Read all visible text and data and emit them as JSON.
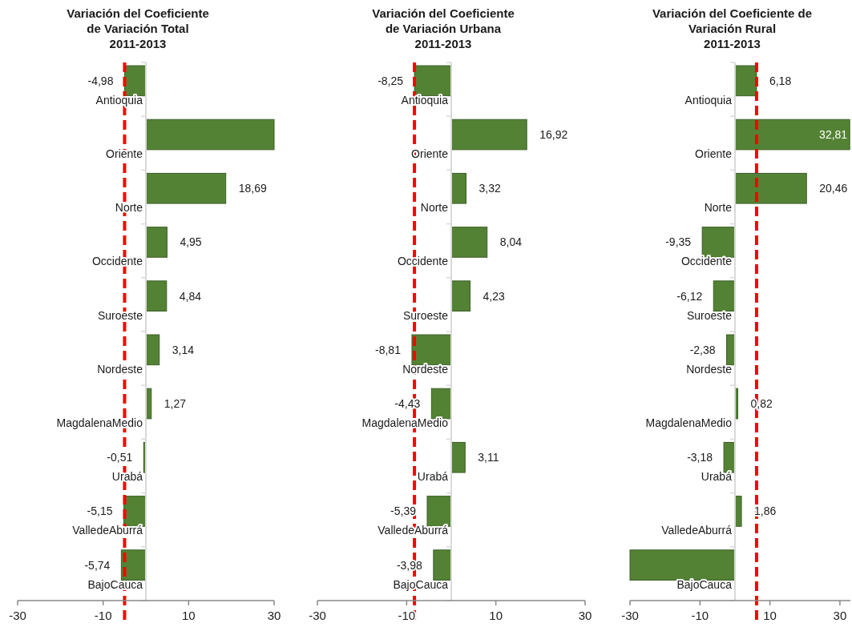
{
  "chart_data": [
    {
      "type": "bar",
      "orientation": "horizontal",
      "title": "Variación del Coeficiente\nde Variación Total\n2011-2013",
      "categories": [
        "Antioquia",
        "Oriente",
        "Norte",
        "Occidente",
        "Suroeste",
        "Nordeste",
        "MagdalenaMedio",
        "Urabá",
        "ValledeAburrá",
        "BajoCauca"
      ],
      "values": [
        -4.98,
        30,
        18.69,
        4.95,
        4.84,
        3.14,
        1.27,
        -0.51,
        -5.15,
        -5.74
      ],
      "value_labels": [
        "-4,98",
        null,
        "18,69",
        "4,95",
        "4,84",
        "3,14",
        "1,27",
        "-0,51",
        "-5,15",
        "-5,74"
      ],
      "color": "#548235",
      "xlim": [
        -30,
        30
      ],
      "xticks": [
        -30,
        -10,
        10,
        30
      ],
      "ref_lines": [
        {
          "axis": "x",
          "value": -4.98,
          "color": "#ff0000",
          "line_style": "dashed"
        }
      ],
      "grid": false
    },
    {
      "type": "bar",
      "orientation": "horizontal",
      "title": "Variación del Coeficiente\nde Variación Urbana\n2011-2013",
      "categories": [
        "Antioquia",
        "Oriente",
        "Norte",
        "Occidente",
        "Suroeste",
        "Nordeste",
        "MagdalenaMedio",
        "Urabá",
        "ValledeAburrá",
        "BajoCauca"
      ],
      "values": [
        -8.25,
        16.92,
        3.32,
        8.04,
        4.23,
        -8.81,
        -4.43,
        3.11,
        -5.39,
        -3.98
      ],
      "value_labels": [
        "-8,25",
        "16,92",
        "3,32",
        "8,04",
        "4,23",
        "-8,81",
        "-4,43",
        "3,11",
        "-5,39",
        "-3,98"
      ],
      "color": "#548235",
      "xlim": [
        -30,
        30
      ],
      "xticks": [
        -30,
        -10,
        10,
        30
      ],
      "ref_lines": [
        {
          "axis": "x",
          "value": -8.25,
          "color": "#ff0000",
          "line_style": "dashed"
        }
      ],
      "grid": false
    },
    {
      "type": "bar",
      "orientation": "horizontal",
      "title": "Variación del Coeficiente de\nVariación Rural\n2011-2013",
      "categories": [
        "Antioquia",
        "Oriente",
        "Norte",
        "Occidente",
        "Suroeste",
        "Nordeste",
        "MagdalenaMedio",
        "Urabá",
        "ValledeAburrá",
        "BajoCauca"
      ],
      "values": [
        6.18,
        32.81,
        20.46,
        -9.35,
        -6.12,
        -2.38,
        0.82,
        -3.18,
        1.86,
        -30
      ],
      "value_labels": [
        "6,18",
        "32,81",
        "20,46",
        "-9,35",
        "-6,12",
        "-2,38",
        "0,82",
        "-3,18",
        "1,86",
        null
      ],
      "color": "#548235",
      "xlim": [
        -30,
        33
      ],
      "xticks": [
        -30,
        -10,
        10,
        30
      ],
      "ref_lines": [
        {
          "axis": "x",
          "value": 6.18,
          "color": "#ff0000",
          "line_style": "dashed"
        }
      ],
      "grid": false
    }
  ]
}
